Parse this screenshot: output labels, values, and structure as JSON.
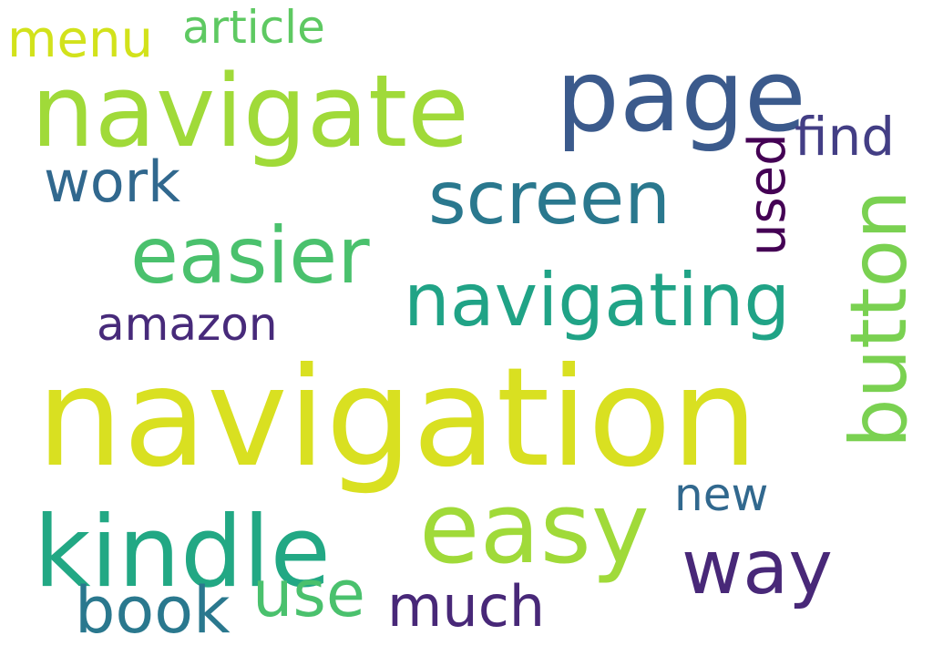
{
  "words": {
    "navigation": {
      "text": "navigation",
      "color": "#d9e021"
    },
    "navigate": {
      "text": "navigate",
      "color": "#a0da39"
    },
    "page": {
      "text": "page",
      "color": "#3b5a8c"
    },
    "kindle": {
      "text": "kindle",
      "color": "#22a884"
    },
    "easy": {
      "text": "easy",
      "color": "#a0da39"
    },
    "screen": {
      "text": "screen",
      "color": "#2a788e"
    },
    "easier": {
      "text": "easier",
      "color": "#4ac16d"
    },
    "navigating": {
      "text": "navigating",
      "color": "#20a386"
    },
    "button": {
      "text": "button",
      "color": "#7ad151"
    },
    "way": {
      "text": "way",
      "color": "#482878"
    },
    "book": {
      "text": "book",
      "color": "#2a788e"
    },
    "use": {
      "text": "use",
      "color": "#4ac16d"
    },
    "much": {
      "text": "much",
      "color": "#482878"
    },
    "work": {
      "text": "work",
      "color": "#31688e"
    },
    "find": {
      "text": "find",
      "color": "#433e85"
    },
    "used": {
      "text": "used",
      "color": "#440154"
    },
    "amazon": {
      "text": "amazon",
      "color": "#472a7a"
    },
    "new": {
      "text": "new",
      "color": "#31688e"
    },
    "menu": {
      "text": "menu",
      "color": "#d2e21b"
    },
    "article": {
      "text": "article",
      "color": "#5ec962"
    }
  }
}
